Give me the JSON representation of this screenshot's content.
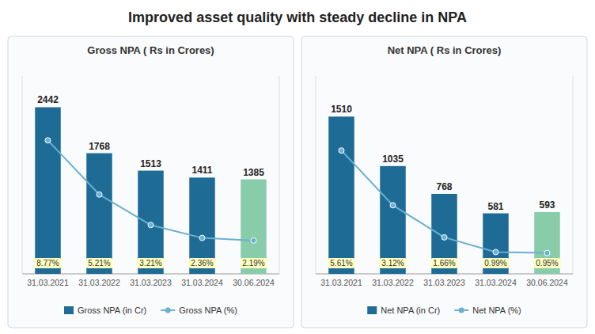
{
  "title": "Improved asset quality with steady decline in NPA",
  "chart_data": [
    {
      "type": "bar",
      "title": "Gross NPA ( Rs in Crores)",
      "categories": [
        "31.03.2021",
        "31.03.2022",
        "31.03.2023",
        "31.03.2024",
        "30.06.2024"
      ],
      "series": [
        {
          "name": "Gross NPA (in Cr)",
          "type": "bar",
          "color": "#1e6b96",
          "colors": [
            "#1e6b96",
            "#1e6b96",
            "#1e6b96",
            "#1e6b96",
            "#88ccaa"
          ],
          "values": [
            2442,
            1768,
            1513,
            1411,
            1385
          ]
        },
        {
          "name": "Gross NPA (%)",
          "type": "line",
          "axis": "y2",
          "color": "#6ab0d0",
          "marker": "circle",
          "values": [
            8.77,
            5.21,
            3.21,
            2.36,
            2.19
          ],
          "value_labels": [
            "8.77%",
            "5.21%",
            "3.21%",
            "2.36%",
            "2.19%"
          ]
        }
      ],
      "ylim": [
        0,
        2900
      ],
      "y2lim": [
        0,
        13
      ],
      "data_labels": true,
      "tick_labels": "x",
      "grid": false,
      "legend": "bottom"
    },
    {
      "type": "bar",
      "title": "Net NPA ( Rs in Crores)",
      "categories": [
        "31.03.2021",
        "31.03.2022",
        "31.03.2023",
        "31.03.2024",
        "30.06.2024"
      ],
      "series": [
        {
          "name": "Net NPA (in Cr)",
          "type": "bar",
          "color": "#1e6b96",
          "colors": [
            "#1e6b96",
            "#1e6b96",
            "#1e6b96",
            "#1e6b96",
            "#88ccaa"
          ],
          "values": [
            1510,
            1035,
            768,
            581,
            593
          ]
        },
        {
          "name": "Net NPA (%)",
          "type": "line",
          "axis": "y2",
          "color": "#6ab0d0",
          "marker": "circle",
          "values": [
            5.61,
            3.12,
            1.66,
            0.99,
            0.95
          ],
          "value_labels": [
            "5.61%",
            "3.12%",
            "1.66%",
            "0.99%",
            "0.95%"
          ]
        }
      ],
      "ylim": [
        0,
        1900
      ],
      "y2lim": [
        0,
        9
      ],
      "data_labels": true,
      "tick_labels": "x",
      "grid": false,
      "legend": "bottom"
    }
  ]
}
